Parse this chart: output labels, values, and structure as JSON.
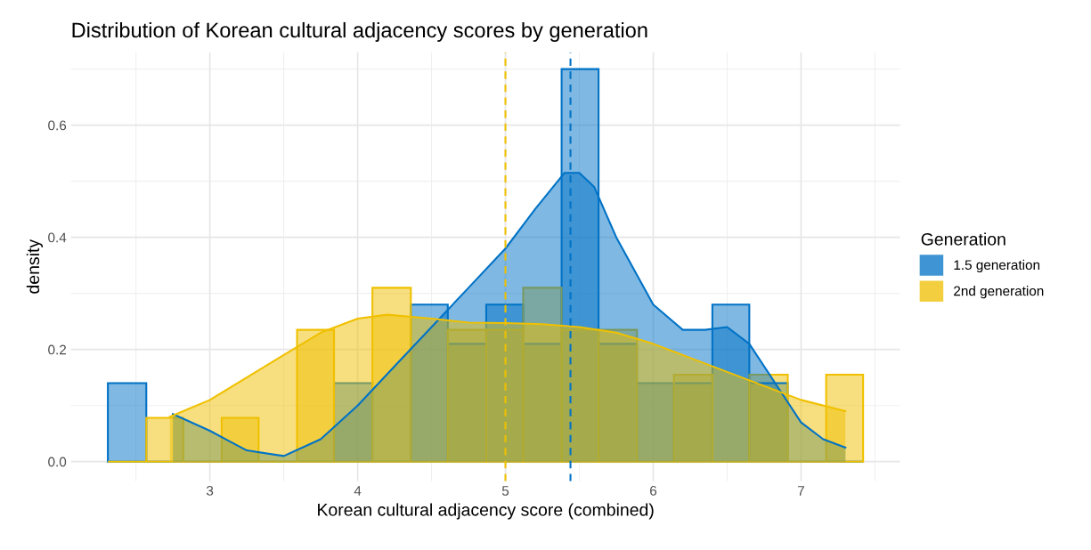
{
  "chart_data": {
    "type": "histogram",
    "title": "Distribution of Korean cultural adjacency scores by generation",
    "xlabel": "Korean cultural adjacency score (combined)",
    "ylabel": "density",
    "legend_title": "Generation",
    "bins": [
      2.31,
      2.57,
      2.82,
      3.08,
      3.33,
      3.59,
      3.84,
      4.1,
      4.36,
      4.61,
      4.87,
      5.12,
      5.38,
      5.63,
      5.89,
      6.14,
      6.4,
      6.65,
      6.91,
      7.17,
      7.42
    ],
    "series": [
      {
        "name": "1.5 generation",
        "color": "#0072c6",
        "values": [
          0.14,
          0,
          0,
          0,
          0,
          0,
          0.14,
          0,
          0.28,
          0.21,
          0.28,
          0.21,
          0.7,
          0.21,
          0.14,
          0.14,
          0.28,
          0.14,
          0,
          0
        ]
      },
      {
        "name": "2nd generation",
        "color": "#f0c000",
        "values": [
          0,
          0.078,
          0,
          0.078,
          0,
          0.235,
          0,
          0.31,
          0,
          0.235,
          0.235,
          0.31,
          0.235,
          0.235,
          0,
          0.155,
          0,
          0.155,
          0,
          0.155
        ]
      },
      {
        "type": "area",
        "color": "#0072c6",
        "x": [
          2.75,
          3.0,
          3.25,
          3.5,
          3.75,
          4.0,
          4.25,
          4.5,
          4.75,
          5.0,
          5.2,
          5.4,
          5.5,
          5.6,
          5.75,
          6.0,
          6.2,
          6.35,
          6.5,
          6.65,
          6.85,
          7.0,
          7.15,
          7.3
        ],
        "values": [
          0.085,
          0.055,
          0.02,
          0.01,
          0.04,
          0.1,
          0.17,
          0.24,
          0.31,
          0.38,
          0.45,
          0.515,
          0.515,
          0.49,
          0.4,
          0.28,
          0.235,
          0.235,
          0.24,
          0.21,
          0.13,
          0.07,
          0.04,
          0.025
        ]
      },
      {
        "type": "area",
        "color": "#f0c000",
        "x": [
          2.73,
          3.0,
          3.25,
          3.5,
          3.75,
          4.0,
          4.2,
          4.5,
          4.75,
          5.0,
          5.25,
          5.5,
          5.75,
          6.0,
          6.25,
          6.5,
          6.75,
          7.0,
          7.3
        ],
        "values": [
          0.08,
          0.11,
          0.15,
          0.19,
          0.23,
          0.255,
          0.262,
          0.255,
          0.248,
          0.247,
          0.245,
          0.24,
          0.23,
          0.21,
          0.185,
          0.16,
          0.135,
          0.11,
          0.09
        ]
      }
    ],
    "ref_lines": [
      {
        "axis": "x",
        "value": 5.0,
        "color": "#f0c000",
        "line_style": "dashed"
      },
      {
        "axis": "x",
        "value": 5.44,
        "color": "#0072c6",
        "line_style": "dashed"
      }
    ],
    "xlim": [
      2.06,
      7.67
    ],
    "ylim": [
      -0.035,
      0.73
    ],
    "xticks": [
      3,
      4,
      5,
      6,
      7
    ],
    "yticks": [
      {
        "value": 0,
        "label": "0.0"
      },
      {
        "value": 0.2,
        "label": "0.2"
      },
      {
        "value": 0.4,
        "label": "0.4"
      },
      {
        "value": 0.6,
        "label": "0.6"
      }
    ],
    "grid": true,
    "legend": "right"
  }
}
